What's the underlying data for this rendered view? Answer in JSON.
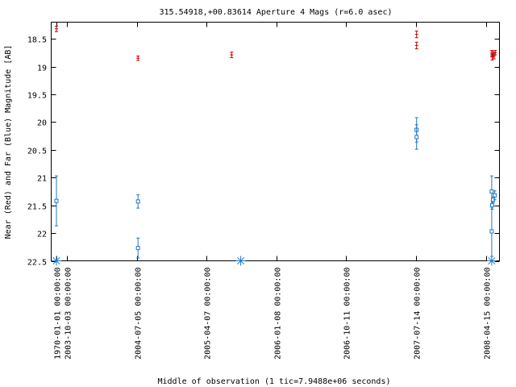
{
  "chart_data": {
    "type": "scatter",
    "title": "315.54918,+00.83614   Aperture 4 Mags (r=6.0 asec)",
    "xlabel": "Middle of observation (1 tic=7.9488e+06 seconds)",
    "ylabel": "Near (Red) and Far (Blue) Magnitude [AB]",
    "ylim": [
      22.5,
      18.2
    ],
    "y_inverted": true,
    "y_ticks": [
      "18.5",
      "19",
      "19.5",
      "20",
      "20.5",
      "21",
      "21.5",
      "22",
      "22.5"
    ],
    "y_tick_values": [
      18.5,
      19,
      19.5,
      20,
      20.5,
      21,
      21.5,
      22,
      22.5
    ],
    "x_tick_labels": [
      "1970-01-01 00:00:00",
      "2003-10-03 00:00:00",
      "2004-07-05 00:00:00",
      "2005-04-07 00:00:00",
      "2006-01-08 00:00:00",
      "2006-10-11 00:00:00",
      "2007-07-14 00:00:00",
      "2008-04-15 00:00:00"
    ],
    "x_tick_dates": [
      "1970-01-01",
      "2003-10-03",
      "2004-07-05",
      "2005-04-07",
      "2006-01-08",
      "2006-10-11",
      "2007-07-14",
      "2008-04-15"
    ],
    "x_axis_break": "1970-01-01 to 2003-10-03 compressed",
    "grid": false,
    "legend": "none",
    "series": [
      {
        "color": "#cc0000",
        "marker": "errorbar",
        "points": [
          {
            "x": "1970-01-01",
            "y": 18.32,
            "err": 0.05
          },
          {
            "x": "2004-07-10",
            "y": 18.85,
            "err": 0.04
          },
          {
            "x": "2005-07-15",
            "y": 18.79,
            "err": 0.05
          },
          {
            "x": "2007-07-16",
            "y": 18.42,
            "err": 0.06
          },
          {
            "x": "2007-07-16",
            "y": 18.62,
            "err": 0.06
          },
          {
            "x": "2008-05-08",
            "y": 18.76,
            "err": 0.05
          },
          {
            "x": "2008-05-10",
            "y": 18.83,
            "err": 0.05
          },
          {
            "x": "2008-05-13",
            "y": 18.78,
            "err": 0.05
          },
          {
            "x": "2008-05-17",
            "y": 18.81,
            "err": 0.05
          },
          {
            "x": "2008-05-22",
            "y": 18.75,
            "err": 0.04
          }
        ]
      },
      {
        "color": "#1e78c8",
        "marker": "square-errorbar",
        "points": [
          {
            "x": "1970-01-01",
            "y": 21.42,
            "err": 0.45
          },
          {
            "x": "2004-07-10",
            "y": 21.43,
            "err": 0.12
          },
          {
            "x": "2004-07-10",
            "y": 22.27,
            "err": 0.18
          },
          {
            "x": "2007-07-16",
            "y": 20.14,
            "err": 0.22
          },
          {
            "x": "2007-07-16",
            "y": 20.27,
            "err": 0.22
          },
          {
            "x": "2008-05-08",
            "y": 21.25,
            "err": 0.28
          },
          {
            "x": "2008-05-08",
            "y": 21.97,
            "err": 0.45
          },
          {
            "x": "2008-05-10",
            "y": 21.5,
            "err": 0.07
          },
          {
            "x": "2008-05-13",
            "y": 21.4,
            "err": 0.05
          },
          {
            "x": "2008-05-20",
            "y": 21.32,
            "err": 0.08
          }
        ]
      },
      {
        "color": "#1e78c8",
        "marker": "asterisk",
        "points": [
          {
            "x": "1970-01-01",
            "y": 22.5
          },
          {
            "x": "2005-08-20",
            "y": 22.5
          },
          {
            "x": "2008-05-08",
            "y": 22.5
          }
        ]
      }
    ]
  }
}
